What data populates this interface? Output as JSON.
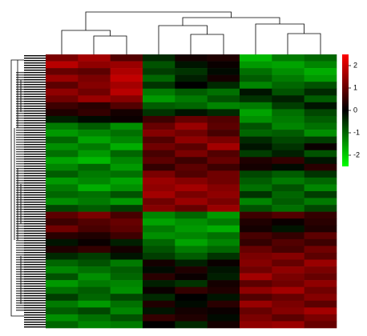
{
  "chart_data": {
    "type": "heatmap",
    "values": [
      [
        1.2,
        1.6,
        0.8,
        -0.4,
        0.2,
        0.3,
        -1.8,
        -1.2,
        -1.0
      ],
      [
        1.8,
        1.4,
        1.5,
        -0.8,
        -0.2,
        0.1,
        -1.5,
        -1.6,
        -1.3
      ],
      [
        1.0,
        0.9,
        1.7,
        -0.6,
        -0.5,
        -0.1,
        -1.1,
        -1.4,
        -1.7
      ],
      [
        1.5,
        1.2,
        1.9,
        -1.0,
        -0.3,
        0.2,
        -0.9,
        -1.2,
        -1.5
      ],
      [
        0.9,
        1.3,
        1.6,
        -0.5,
        0.0,
        -0.4,
        -1.3,
        -1.0,
        -0.8
      ],
      [
        1.4,
        1.1,
        1.8,
        -1.2,
        -0.9,
        -1.1,
        -0.2,
        -0.8,
        -0.4
      ],
      [
        1.1,
        1.5,
        1.3,
        -1.5,
        -1.2,
        -0.8,
        -0.5,
        -0.3,
        -0.9
      ],
      [
        0.6,
        0.4,
        0.8,
        -0.9,
        -1.0,
        -1.3,
        -1.2,
        -0.6,
        -0.2
      ],
      [
        0.3,
        0.5,
        0.2,
        -0.5,
        -0.2,
        -0.4,
        -1.6,
        -1.1,
        -0.7
      ],
      [
        -0.3,
        -0.1,
        0.1,
        0.6,
        1.0,
        0.8,
        -1.4,
        -1.2,
        -0.9
      ],
      [
        -1.2,
        -0.9,
        -1.4,
        1.0,
        1.5,
        0.9,
        -0.8,
        -1.3,
        -1.1
      ],
      [
        -1.5,
        -1.3,
        -1.1,
        1.3,
        1.1,
        0.7,
        -1.0,
        -0.9,
        -1.4
      ],
      [
        -1.0,
        -1.6,
        -1.3,
        0.8,
        1.4,
        1.2,
        -0.4,
        -0.7,
        -0.6
      ],
      [
        -1.4,
        -1.2,
        -1.7,
        1.1,
        0.9,
        1.6,
        -0.2,
        -0.5,
        0.1
      ],
      [
        -1.1,
        -1.5,
        -1.0,
        0.7,
        1.2,
        0.8,
        -0.6,
        -0.3,
        -0.8
      ],
      [
        -1.6,
        -1.8,
        -1.3,
        0.9,
        0.6,
        1.0,
        0.3,
        0.5,
        -0.2
      ],
      [
        -1.3,
        -1.0,
        -1.5,
        0.5,
        0.9,
        0.6,
        0.2,
        -0.1,
        0.4
      ],
      [
        -0.9,
        -1.2,
        -1.1,
        1.2,
        0.8,
        1.1,
        -0.7,
        -0.9,
        -0.5
      ],
      [
        -1.5,
        -1.3,
        -1.6,
        1.5,
        1.3,
        1.1,
        -0.9,
        -1.2,
        -1.0
      ],
      [
        -1.2,
        -1.7,
        -1.4,
        1.4,
        1.6,
        1.3,
        -1.1,
        -0.8,
        -1.3
      ],
      [
        -1.0,
        -1.1,
        -0.8,
        1.6,
        1.2,
        1.4,
        -0.5,
        -1.0,
        -0.6
      ],
      [
        -1.4,
        -1.2,
        -1.5,
        1.1,
        1.5,
        1.2,
        -1.3,
        -0.9,
        -1.2
      ],
      [
        -0.7,
        -0.9,
        -0.6,
        1.3,
        1.0,
        1.5,
        -0.8,
        -1.1,
        -0.7
      ],
      [
        0.9,
        1.2,
        0.7,
        -1.3,
        -1.0,
        -1.5,
        0.6,
        0.8,
        0.5
      ],
      [
        0.6,
        0.8,
        1.0,
        -1.6,
        -1.4,
        -1.2,
        0.3,
        0.1,
        0.4
      ],
      [
        1.1,
        0.7,
        0.9,
        -1.2,
        -1.5,
        -1.7,
        0.2,
        -0.2,
        0.3
      ],
      [
        0.4,
        0.3,
        0.6,
        -1.4,
        -1.3,
        -1.1,
        0.7,
        0.5,
        0.9
      ],
      [
        -0.2,
        0.1,
        -0.3,
        -1.0,
        -1.6,
        -1.3,
        0.5,
        0.8,
        0.6
      ],
      [
        0.3,
        0.5,
        0.2,
        -0.8,
        -1.2,
        -1.0,
        1.0,
        0.7,
        1.1
      ],
      [
        -0.4,
        -0.6,
        -0.2,
        -0.6,
        -0.9,
        -0.5,
        1.2,
        1.3,
        0.9
      ],
      [
        -1.0,
        -0.8,
        -1.2,
        0.2,
        -0.3,
        0.1,
        1.3,
        1.0,
        1.5
      ],
      [
        -1.3,
        -1.1,
        -0.9,
        -0.1,
        0.3,
        -0.2,
        1.1,
        1.4,
        1.2
      ],
      [
        -0.8,
        -1.4,
        -1.0,
        0.4,
        0.1,
        -0.3,
        1.6,
        1.2,
        1.0
      ],
      [
        -1.5,
        -1.2,
        -1.3,
        -0.3,
        -0.5,
        0.2,
        0.9,
        1.1,
        1.4
      ],
      [
        -1.1,
        -0.9,
        -1.4,
        0.1,
        0.5,
        0.3,
        1.4,
        1.6,
        1.1
      ],
      [
        -0.6,
        -1.0,
        -0.7,
        -0.4,
        0.0,
        -0.2,
        0.8,
        1.0,
        1.3
      ],
      [
        -1.2,
        -1.5,
        -1.1,
        0.3,
        -0.1,
        0.4,
        1.5,
        1.2,
        0.9
      ],
      [
        -0.9,
        -0.7,
        -1.3,
        -0.2,
        0.2,
        0.1,
        1.0,
        1.3,
        1.6
      ],
      [
        -1.4,
        -1.1,
        -0.8,
        0.5,
        0.3,
        -0.1,
        1.2,
        0.9,
        1.2
      ],
      [
        -1.0,
        -1.3,
        -1.2,
        0.0,
        -0.4,
        0.2,
        1.4,
        1.5,
        1.0
      ]
    ],
    "zlim": [
      -2.5,
      2.5
    ],
    "zticks": [
      2,
      1,
      0,
      -1,
      -2
    ],
    "colors": {
      "low": "#00ff00",
      "mid": "#000000",
      "high": "#ff0000"
    }
  }
}
